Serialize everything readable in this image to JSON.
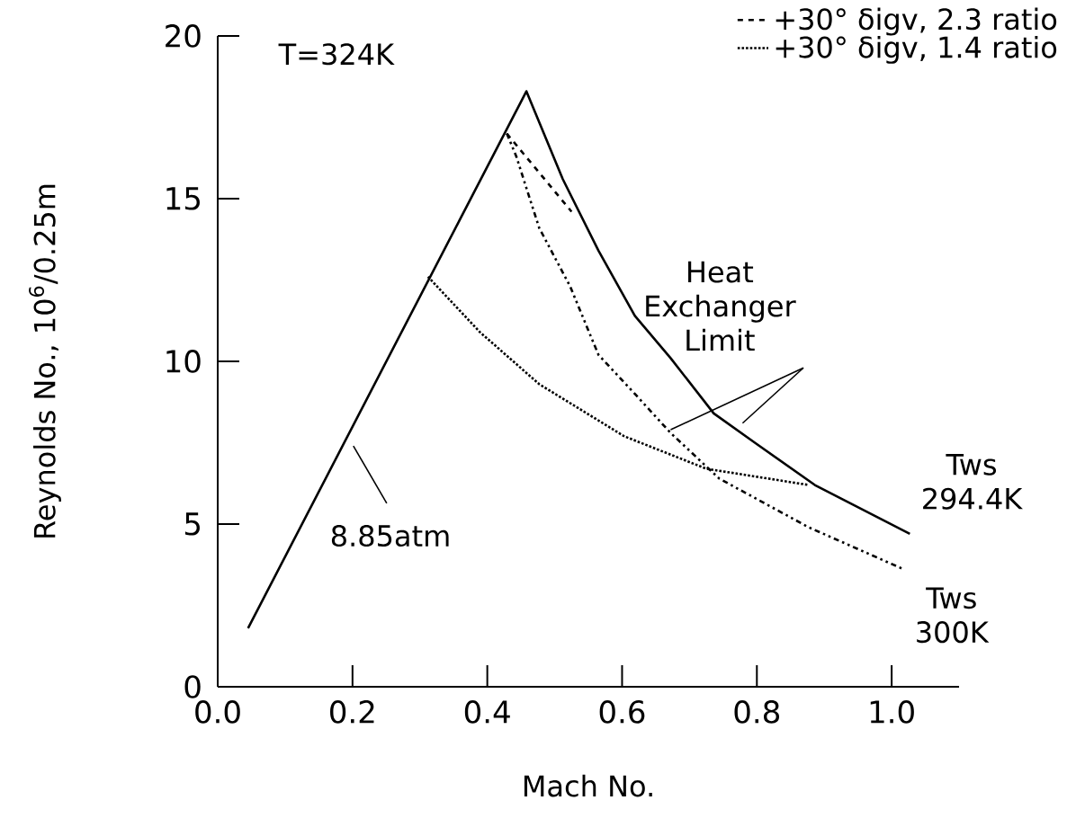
{
  "chart_data": {
    "type": "line",
    "xlabel": "Mach No.",
    "ylabel": "Reynolds No., 10$^{6}$/0.25m",
    "xlim": [
      0,
      1.1
    ],
    "ylim": [
      0,
      20
    ],
    "xticks": [
      {
        "value": 0,
        "label": "0.0"
      },
      {
        "value": 0.2,
        "label": "0.2"
      },
      {
        "value": 0.4,
        "label": "0.4"
      },
      {
        "value": 0.6,
        "label": "0.6"
      },
      {
        "value": 0.8,
        "label": "0.8"
      },
      {
        "value": 1.0,
        "label": "1.0"
      }
    ],
    "yticks": [
      0,
      5,
      10,
      15,
      20
    ],
    "legend": "top right",
    "series": [
      {
        "color": "#000000",
        "line_style": "solid",
        "x": [
          0.045,
          0.458,
          0.512,
          0.565,
          0.619,
          0.672,
          0.736,
          0.797,
          0.886,
          1.027
        ],
        "values": [
          1.8,
          18.3,
          15.6,
          13.4,
          11.4,
          10.1,
          8.4,
          7.5,
          6.2,
          4.7
        ]
      },
      {
        "name": "+30° δigv, 2.3 ratio",
        "color": "#000000",
        "line_style": "dashed",
        "x": [
          0.429,
          0.525
        ],
        "values": [
          17.0,
          14.6
        ]
      },
      {
        "name": "+30° δigv, 1.4 ratio",
        "color": "#000000",
        "line_style": "dotted",
        "x": [
          0.312,
          0.389,
          0.477,
          0.603,
          0.725,
          0.877
        ],
        "values": [
          12.6,
          10.9,
          9.3,
          7.7,
          6.7,
          6.2
        ]
      },
      {
        "color": "#000000",
        "line_style": "dashdot",
        "x": [
          0.429,
          0.443,
          0.477,
          0.523,
          0.565,
          0.619,
          0.672,
          0.744,
          0.877,
          1.019
        ],
        "values": [
          17.0,
          16.3,
          14.1,
          12.3,
          10.2,
          9.0,
          7.8,
          6.4,
          4.9,
          3.6
        ]
      }
    ],
    "annotations": [
      "T=324K",
      "8.85atm",
      "Heat Exchanger Limit",
      "Tws 294.4K",
      "Tws 300K"
    ]
  }
}
